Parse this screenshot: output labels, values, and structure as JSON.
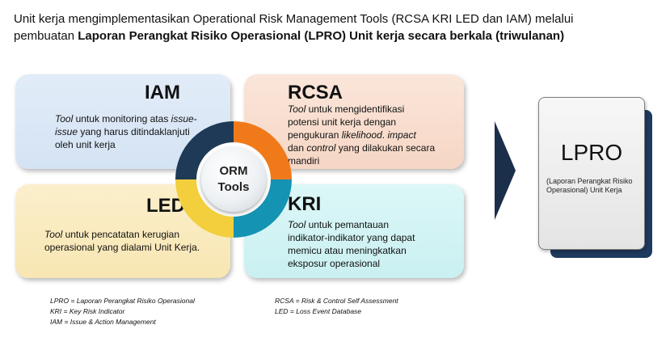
{
  "header": {
    "line1": "Unit kerja mengimplementasikan Operational Risk Management Tools (RCSA KRI LED dan IAM) melalui",
    "line2_prefix": "pembuatan ",
    "line2_bold": "Laporan  Perangkat Risiko Operasional (LPRO) Unit kerja secara berkala (triwulanan)"
  },
  "cards": {
    "iam": {
      "title": "IAM",
      "l1_em": "Tool",
      "l1_rest": " untuk monitoring atas ",
      "l1_em2": "issue-",
      "l2_em": "issue",
      "l2_rest": " yang harus ditindaklanjuti",
      "l3": "oleh unit kerja"
    },
    "rcsa": {
      "title": "RCSA",
      "l1_em": "Tool",
      "l1_rest": " untuk mengidentifikasi",
      "l2": "potensi   unit kerja dengan",
      "l3_rest": "pengukuran ",
      "l3_em": "likelihood",
      "l3_rest2": ". ",
      "l3_em2": "impact",
      "l4_rest": "dan ",
      "l4_em": "control",
      "l4_rest2": " yang dilakukan secara",
      "l5": "mandiri"
    },
    "led": {
      "title": "LED",
      "l1_em": "Tool",
      "l1_rest": " untuk pencatatan kerugian",
      "l2": "operasional yang dialami Unit Kerja."
    },
    "kri": {
      "title": "KRI",
      "l1_em": "Tool",
      "l1_rest": " untuk pemantauan",
      "l2": "indikator-indikator yang dapat",
      "l3": "memicu atau meningkatkan",
      "l4": "eksposur   operasional"
    }
  },
  "center": {
    "line1": "ORM",
    "line2": "Tools"
  },
  "lpro": {
    "title": "LPRO",
    "subtitle": "(Laporan Perangkat Risiko Operasional) Unit Kerja"
  },
  "footnotes": {
    "left": [
      "LPRO = Laporan Perangkat Risiko Operasional",
      "KRI = Key Risk Indicator",
      "IAM = Issue & Action Management"
    ],
    "right": [
      "RCSA = Risk & Control Self Assessment",
      "LED = Loss Event Database"
    ]
  },
  "colors": {
    "iam_ring": "#1e3a56",
    "rcsa_ring": "#f07a1a",
    "led_ring": "#f3cf3e",
    "kri_ring": "#1593b3",
    "lpro_back": "#1f3a5f",
    "arrow": "#1b2e4a"
  }
}
